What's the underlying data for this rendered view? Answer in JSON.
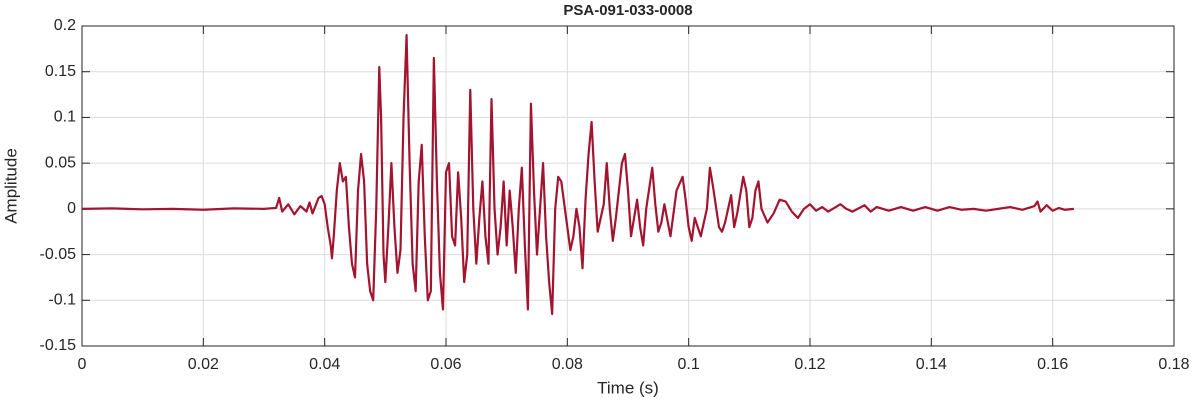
{
  "chart_data": {
    "type": "line",
    "title": "PSA-091-033-0008",
    "xlabel": "Time (s)",
    "ylabel": "Amplitude",
    "color": "#a2142f",
    "grid": true,
    "xlim": [
      0,
      0.18
    ],
    "ylim": [
      -0.15,
      0.2
    ],
    "xticks": [
      0,
      0.02,
      0.04,
      0.06,
      0.08,
      0.1,
      0.12,
      0.14,
      0.16,
      0.18
    ],
    "yticks": [
      -0.15,
      -0.1,
      -0.05,
      0,
      0.05,
      0.1,
      0.15,
      0.2
    ],
    "x": [
      0,
      0.005,
      0.01,
      0.015,
      0.02,
      0.025,
      0.03,
      0.032,
      0.0325,
      0.033,
      0.034,
      0.035,
      0.036,
      0.037,
      0.0375,
      0.038,
      0.039,
      0.0395,
      0.04,
      0.0405,
      0.041,
      0.0412,
      0.0415,
      0.042,
      0.0425,
      0.043,
      0.0435,
      0.044,
      0.0445,
      0.045,
      0.0455,
      0.046,
      0.0465,
      0.047,
      0.0475,
      0.048,
      0.0485,
      0.049,
      0.0493,
      0.0497,
      0.05,
      0.0505,
      0.051,
      0.0515,
      0.052,
      0.0525,
      0.053,
      0.0535,
      0.054,
      0.0545,
      0.055,
      0.0555,
      0.056,
      0.0565,
      0.057,
      0.0575,
      0.058,
      0.0585,
      0.059,
      0.0595,
      0.06,
      0.0605,
      0.061,
      0.0615,
      0.062,
      0.0625,
      0.063,
      0.0635,
      0.064,
      0.0645,
      0.065,
      0.0655,
      0.066,
      0.0665,
      0.067,
      0.0675,
      0.068,
      0.0685,
      0.069,
      0.0695,
      0.07,
      0.0705,
      0.071,
      0.0715,
      0.072,
      0.0725,
      0.073,
      0.0735,
      0.074,
      0.0745,
      0.075,
      0.0755,
      0.076,
      0.0765,
      0.077,
      0.0775,
      0.078,
      0.0785,
      0.079,
      0.0795,
      0.08,
      0.0805,
      0.081,
      0.0815,
      0.082,
      0.0825,
      0.083,
      0.0835,
      0.084,
      0.0845,
      0.085,
      0.0855,
      0.086,
      0.0865,
      0.087,
      0.0875,
      0.088,
      0.0885,
      0.089,
      0.0895,
      0.09,
      0.0905,
      0.091,
      0.0915,
      0.092,
      0.0925,
      0.093,
      0.094,
      0.0945,
      0.095,
      0.0955,
      0.096,
      0.097,
      0.0975,
      0.098,
      0.099,
      0.0995,
      0.1,
      0.1005,
      0.101,
      0.102,
      0.103,
      0.1035,
      0.104,
      0.105,
      0.1055,
      0.106,
      0.107,
      0.1075,
      0.108,
      0.109,
      0.1095,
      0.11,
      0.1105,
      0.111,
      0.1115,
      0.112,
      0.113,
      0.114,
      0.115,
      0.116,
      0.117,
      0.118,
      0.119,
      0.12,
      0.121,
      0.122,
      0.123,
      0.125,
      0.126,
      0.127,
      0.129,
      0.13,
      0.131,
      0.133,
      0.135,
      0.137,
      0.139,
      0.141,
      0.143,
      0.145,
      0.147,
      0.149,
      0.151,
      0.153,
      0.155,
      0.157,
      0.1575,
      0.158,
      0.159,
      0.16,
      0.161,
      0.162,
      0.1635
    ],
    "values": [
      0,
      0.0005,
      -0.0005,
      0,
      -0.001,
      0.0005,
      0,
      0.001,
      0.012,
      -0.003,
      0.005,
      -0.006,
      0.003,
      -0.003,
      0.007,
      -0.005,
      0.012,
      0.014,
      0.005,
      -0.02,
      -0.04,
      -0.054,
      -0.03,
      0.02,
      0.05,
      0.03,
      0.035,
      -0.02,
      -0.06,
      -0.075,
      0.02,
      0.06,
      0.03,
      -0.06,
      -0.09,
      -0.1,
      0,
      0.155,
      0.1,
      -0.05,
      -0.08,
      -0.02,
      0.05,
      -0.02,
      -0.07,
      -0.045,
      0.1,
      0.19,
      0.05,
      -0.06,
      -0.09,
      0.03,
      0.07,
      -0.03,
      -0.1,
      -0.09,
      0.165,
      0.03,
      -0.07,
      -0.11,
      0.04,
      0.05,
      -0.03,
      -0.04,
      0.04,
      -0.01,
      -0.08,
      -0.05,
      0.13,
      0,
      -0.06,
      -0.01,
      0.03,
      -0.03,
      -0.06,
      0.12,
      0,
      -0.05,
      -0.02,
      0.03,
      -0.04,
      0.02,
      -0.02,
      -0.07,
      0,
      0.045,
      -0.04,
      -0.11,
      0.115,
      0.02,
      -0.05,
      0,
      0.05,
      -0.03,
      -0.08,
      -0.115,
      0,
      0.035,
      0.03,
      0.005,
      -0.02,
      -0.045,
      -0.03,
      0,
      -0.02,
      -0.065,
      0.01,
      0.06,
      0.095,
      0.03,
      -0.025,
      -0.01,
      0.005,
      0.05,
      0,
      -0.035,
      -0.01,
      0.02,
      0.05,
      0.06,
      0.02,
      -0.03,
      -0.01,
      0.01,
      -0.02,
      -0.04,
      0,
      0.045,
      0.005,
      -0.025,
      -0.015,
      0.005,
      -0.03,
      -0.005,
      0.02,
      0.035,
      0.01,
      -0.02,
      -0.035,
      -0.01,
      -0.03,
      0,
      0.045,
      0.025,
      -0.02,
      -0.025,
      -0.015,
      0.015,
      -0.02,
      -0.005,
      0.035,
      0.02,
      -0.02,
      -0.01,
      0.02,
      0.03,
      0,
      -0.015,
      -0.005,
      0.01,
      0.008,
      -0.003,
      -0.01,
      0,
      0.005,
      -0.002,
      0.002,
      -0.003,
      0.005,
      0,
      -0.003,
      0.004,
      -0.003,
      0.002,
      -0.002,
      0.002,
      -0.002,
      0.002,
      -0.002,
      0.002,
      -0.001,
      0,
      -0.002,
      0,
      0.002,
      -0.001,
      0.003,
      0.008,
      -0.003,
      0.004,
      -0.002,
      0.001,
      -0.001,
      0
    ]
  }
}
